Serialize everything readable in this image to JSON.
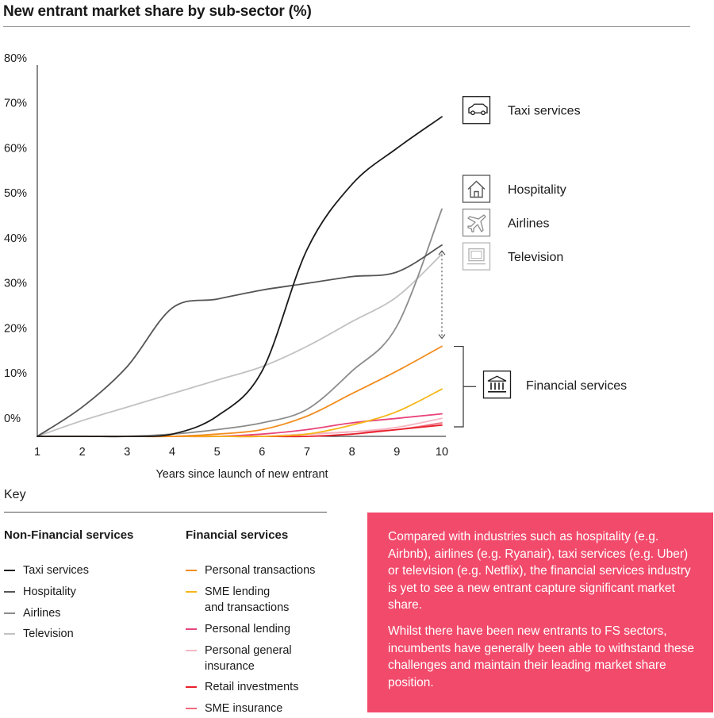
{
  "title": "New entrant market share by sub-sector (%)",
  "colors": {
    "taxi": "#1a1a1a",
    "hospitality": "#555555",
    "airlines": "#8c8c8c",
    "television": "#c2c2c2",
    "personal_transactions": "#f28c1e",
    "sme_lending": "#f5b617",
    "personal_lending": "#e8457a",
    "personal_general_insurance": "#f5b6c4",
    "retail_investments": "#e8202a",
    "sme_insurance": "#f06a7e",
    "callout_bg": "#f24a6b"
  },
  "chart_data": {
    "type": "line",
    "xlabel": "Years since launch of new entrant",
    "ylabel": "",
    "x": [
      1,
      2,
      3,
      4,
      5,
      6,
      7,
      8,
      9,
      10
    ],
    "xlim": [
      1,
      10
    ],
    "ylim": [
      -2.5,
      80
    ],
    "yticks": [
      0,
      10,
      20,
      30,
      40,
      50,
      60,
      70,
      80
    ],
    "ytick_labels": [
      "0%",
      "10%",
      "20%",
      "30%",
      "40%",
      "50%",
      "60%",
      "70%",
      "80%"
    ],
    "grid": false,
    "series": [
      {
        "name": "Taxi services",
        "key": "taxi",
        "group": "Non-Financial services",
        "values": [
          -2.5,
          -2.5,
          -2.5,
          -2,
          2,
          12,
          39,
          53.5,
          61.5,
          68.5
        ]
      },
      {
        "name": "Hospitality",
        "key": "hospitality",
        "group": "Non-Financial services",
        "values": [
          -2.5,
          4,
          13,
          26,
          28,
          30,
          31.5,
          33,
          34,
          40
        ]
      },
      {
        "name": "Airlines",
        "key": "airlines",
        "group": "Non-Financial services",
        "values": [
          -2.5,
          -2.5,
          -2.5,
          -2,
          -1,
          0.5,
          3.5,
          12,
          22,
          48
        ]
      },
      {
        "name": "Television",
        "key": "television",
        "group": "Non-Financial services",
        "values": [
          -2.5,
          1,
          4,
          7,
          10,
          13,
          17.5,
          23,
          28.5,
          38
        ]
      },
      {
        "name": "Personal transactions",
        "key": "personal_transactions",
        "group": "Financial services",
        "values": [
          -2.5,
          -2.5,
          -2.5,
          -2.5,
          -2,
          -1,
          2,
          7,
          12,
          17.5
        ]
      },
      {
        "name": "SME lending\nand transactions",
        "key": "sme_lending",
        "group": "Financial services",
        "values": [
          -2.5,
          -2.5,
          -2.5,
          -2.5,
          -2.5,
          -2.5,
          -2,
          0,
          3,
          8
        ]
      },
      {
        "name": "Personal lending",
        "key": "personal_lending",
        "group": "Financial services",
        "values": [
          -2.5,
          -2.5,
          -2.5,
          -2.5,
          -2.5,
          -2,
          -1,
          0.5,
          1.5,
          2.5
        ]
      },
      {
        "name": "Personal general\ninsurance",
        "key": "personal_general_insurance",
        "group": "Financial services",
        "values": [
          -2.5,
          -2.5,
          -2.5,
          -2.5,
          -2.5,
          -2.5,
          -2,
          -1.5,
          -0.5,
          1.5
        ]
      },
      {
        "name": "Retail investments",
        "key": "retail_investments",
        "group": "Financial services",
        "values": [
          -2.5,
          -2.5,
          -2.5,
          -2.5,
          -2.5,
          -2.5,
          -2.5,
          -2,
          -1,
          0
        ]
      },
      {
        "name": "SME insurance",
        "key": "sme_insurance",
        "group": "Financial services",
        "values": [
          -2.5,
          -2.5,
          -2.5,
          -2.5,
          -2.5,
          -2.5,
          -2,
          -1.5,
          -1,
          0.5
        ]
      }
    ],
    "annotations": [
      {
        "label": "Taxi services",
        "icon": "car-icon",
        "y": 70
      },
      {
        "label": "Hospitality",
        "icon": "house-icon",
        "y": 52.5
      },
      {
        "label": "Airlines",
        "icon": "airplane-icon",
        "y": 45
      },
      {
        "label": "Television",
        "icon": "tv-icon",
        "y": 37.5
      },
      {
        "label": "Financial services",
        "icon": "bank-icon",
        "y": 9
      }
    ]
  },
  "key": {
    "title": "Key",
    "non_financial_heading": "Non-Financial services",
    "financial_heading": "Financial services"
  },
  "callout": {
    "paragraph_1": "Compared with industries such as hospitality (e.g. Airbnb), airlines (e.g. Ryanair), taxi services (e.g. Uber) or television (e.g. Netflix), the financial services industry is yet to see a new entrant capture significant market share.",
    "paragraph_2": "Whilst there have been new entrants to FS sectors, incumbents have generally been able to withstand these challenges and maintain their leading market share position."
  }
}
